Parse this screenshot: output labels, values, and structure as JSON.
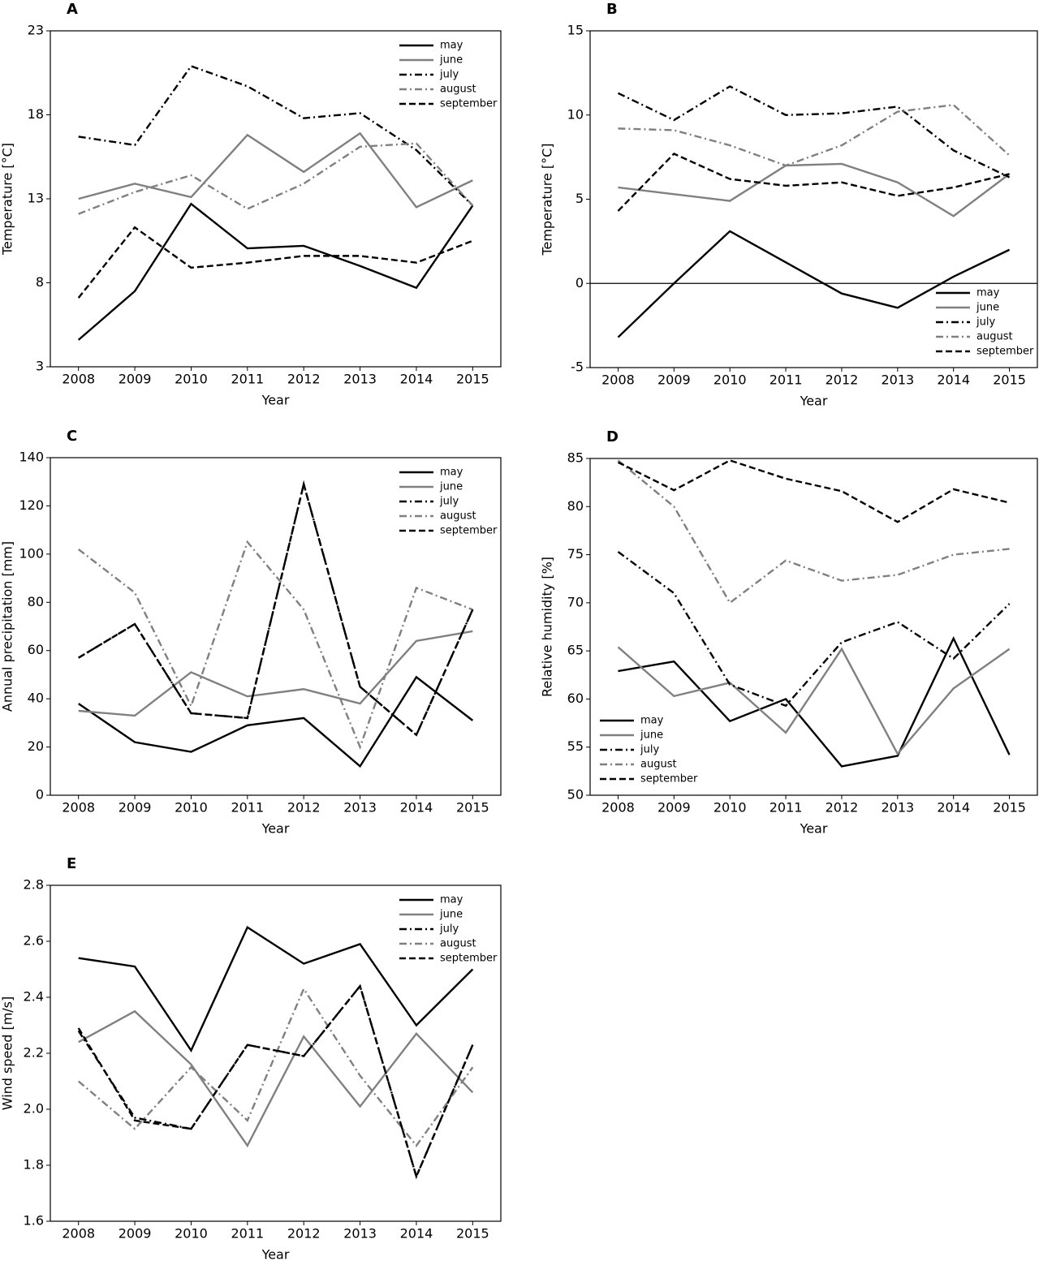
{
  "chart_data": [
    {
      "type": "line",
      "title": "A",
      "x_label": "Year",
      "y_label": "Temperature [°C]",
      "categories": [
        "2008",
        "2009",
        "2010",
        "2011",
        "2012",
        "2013",
        "2014",
        "2015"
      ],
      "ylim": [
        3,
        23
      ],
      "yticks": [
        3,
        8,
        13,
        18,
        23
      ],
      "legend": "top-right",
      "series": [
        {
          "name": "may",
          "color": "#000000",
          "style": "solid",
          "values": [
            4.6,
            7.5,
            12.7,
            10.05,
            10.2,
            9.0,
            7.7,
            12.6
          ]
        },
        {
          "name": "june",
          "color": "#808080",
          "style": "solid",
          "values": [
            13.0,
            13.9,
            13.1,
            16.8,
            14.6,
            16.9,
            12.5,
            14.1
          ]
        },
        {
          "name": "july",
          "color": "#000000",
          "style": "dashdot",
          "values": [
            16.7,
            16.2,
            20.9,
            19.7,
            17.8,
            18.1,
            15.9,
            12.6
          ]
        },
        {
          "name": "august",
          "color": "#808080",
          "style": "dashdot",
          "values": [
            12.1,
            13.4,
            14.4,
            12.4,
            13.9,
            16.1,
            16.3,
            12.6
          ]
        },
        {
          "name": "september",
          "color": "#000000",
          "style": "dashed",
          "values": [
            7.1,
            11.3,
            8.9,
            9.2,
            9.6,
            9.6,
            9.2,
            10.5
          ]
        }
      ]
    },
    {
      "type": "line",
      "title": "B",
      "x_label": "Year",
      "y_label": "Temperature [°C]",
      "categories": [
        "2008",
        "2009",
        "2010",
        "2011",
        "2012",
        "2013",
        "2014",
        "2015"
      ],
      "ylim": [
        -5,
        15
      ],
      "yticks": [
        -5,
        0,
        5,
        10,
        15
      ],
      "legend": "bottom-right",
      "series": [
        {
          "name": "may",
          "color": "#000000",
          "style": "solid",
          "values": [
            -3.2,
            0.0,
            3.1,
            1.25,
            -0.6,
            -1.45,
            0.4,
            2.0
          ]
        },
        {
          "name": "june",
          "color": "#808080",
          "style": "solid",
          "values": [
            5.7,
            5.3,
            4.9,
            7.0,
            7.1,
            6.0,
            4.0,
            6.5
          ]
        },
        {
          "name": "july",
          "color": "#000000",
          "style": "dashdot",
          "values": [
            11.3,
            9.7,
            11.7,
            10.0,
            10.1,
            10.5,
            7.9,
            6.3
          ]
        },
        {
          "name": "august",
          "color": "#808080",
          "style": "dashdot",
          "values": [
            9.2,
            9.1,
            8.2,
            7.0,
            8.2,
            10.2,
            10.6,
            7.6
          ]
        },
        {
          "name": "september",
          "color": "#000000",
          "style": "dashed",
          "values": [
            4.3,
            7.7,
            6.2,
            5.8,
            6.0,
            5.2,
            5.7,
            6.5
          ]
        }
      ]
    },
    {
      "type": "line",
      "title": "C",
      "x_label": "Year",
      "y_label": "Annual precipitation [mm]",
      "categories": [
        "2008",
        "2009",
        "2010",
        "2011",
        "2012",
        "2013",
        "2014",
        "2015"
      ],
      "ylim": [
        0,
        140
      ],
      "yticks": [
        0,
        20,
        40,
        60,
        80,
        100,
        120,
        140
      ],
      "legend": "top-right",
      "series": [
        {
          "name": "may",
          "color": "#000000",
          "style": "solid",
          "values": [
            38,
            22,
            18,
            29,
            32,
            12,
            49,
            31
          ]
        },
        {
          "name": "june",
          "color": "#808080",
          "style": "solid",
          "values": [
            35,
            33,
            51,
            41,
            44,
            38,
            64,
            68
          ]
        },
        {
          "name": "july",
          "color": "#000000",
          "style": "dashdot",
          "values": [
            57,
            71,
            34,
            32,
            129,
            45,
            25,
            77
          ]
        },
        {
          "name": "august",
          "color": "#808080",
          "style": "dashdot",
          "values": [
            102,
            84,
            37,
            105,
            77,
            20,
            86,
            77
          ]
        },
        {
          "name": "september",
          "color": "#000000",
          "style": "dashed",
          "values": [
            57,
            71,
            34,
            32,
            129,
            45,
            25,
            77
          ]
        }
      ]
    },
    {
      "type": "line",
      "title": "D",
      "x_label": "Year",
      "y_label": "Relative humidity [%]",
      "categories": [
        "2008",
        "2009",
        "2010",
        "2011",
        "2012",
        "2013",
        "2014",
        "2015"
      ],
      "ylim": [
        50,
        85
      ],
      "yticks": [
        50,
        55,
        60,
        65,
        70,
        75,
        80,
        85
      ],
      "legend": "bottom-left",
      "series": [
        {
          "name": "may",
          "color": "#000000",
          "style": "solid",
          "values": [
            62.9,
            63.9,
            57.7,
            60.0,
            53.0,
            54.1,
            66.3,
            54.2
          ]
        },
        {
          "name": "june",
          "color": "#808080",
          "style": "solid",
          "values": [
            65.4,
            60.3,
            61.7,
            56.5,
            65.2,
            54.3,
            61.1,
            65.2
          ]
        },
        {
          "name": "july",
          "color": "#000000",
          "style": "dashdot",
          "values": [
            75.3,
            71.0,
            61.5,
            59.3,
            65.9,
            68.0,
            64.2,
            69.9
          ]
        },
        {
          "name": "august",
          "color": "#808080",
          "style": "dashdot",
          "values": [
            84.8,
            80.0,
            70.0,
            74.4,
            72.3,
            72.9,
            75.0,
            75.6
          ]
        },
        {
          "name": "september",
          "color": "#000000",
          "style": "dashed",
          "values": [
            84.6,
            81.7,
            84.8,
            82.9,
            81.6,
            78.4,
            81.8,
            80.4
          ]
        }
      ]
    },
    {
      "type": "line",
      "title": "E",
      "x_label": "Year",
      "y_label": "Wind speed [m/s]",
      "categories": [
        "2008",
        "2009",
        "2010",
        "2011",
        "2012",
        "2013",
        "2014",
        "2015"
      ],
      "ylim": [
        1.6,
        2.8
      ],
      "yticks": [
        1.6,
        1.8,
        {
          "value": 2,
          "label": "2.0"
        },
        2.2,
        2.4,
        2.6,
        2.8
      ],
      "legend": "top-right",
      "series": [
        {
          "name": "may",
          "color": "#000000",
          "style": "solid",
          "values": [
            2.54,
            2.51,
            2.21,
            2.65,
            2.52,
            2.59,
            2.3,
            2.5
          ]
        },
        {
          "name": "june",
          "color": "#808080",
          "style": "solid",
          "values": [
            2.24,
            2.35,
            2.16,
            1.87,
            2.26,
            2.01,
            2.27,
            2.06
          ]
        },
        {
          "name": "july",
          "color": "#000000",
          "style": "dashdot",
          "values": [
            2.28,
            1.97,
            1.93,
            2.23,
            2.19,
            2.44,
            1.76,
            2.23
          ]
        },
        {
          "name": "august",
          "color": "#808080",
          "style": "dashdot",
          "values": [
            2.1,
            1.93,
            2.15,
            1.96,
            2.43,
            2.12,
            1.87,
            2.15
          ]
        },
        {
          "name": "september",
          "color": "#000000",
          "style": "dashed",
          "values": [
            2.29,
            1.96,
            1.93,
            2.23,
            2.19,
            2.44,
            1.76,
            2.23
          ]
        }
      ]
    }
  ]
}
